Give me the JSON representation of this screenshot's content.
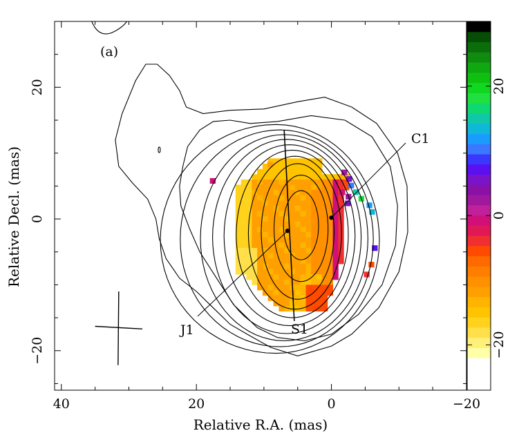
{
  "figure": {
    "panel_label": "(a)",
    "xlabel": "Relative R.A. (mas)",
    "ylabel": "Relative Decl. (mas)"
  },
  "chart_data": {
    "type": "heatmap",
    "xlabel": "Relative R.A. (mas)",
    "ylabel": "Relative Decl. (mas)",
    "xlim": [
      41,
      -20
    ],
    "ylim": [
      -26,
      30
    ],
    "x_ticks": [
      40,
      20,
      0,
      -20
    ],
    "y_ticks": [
      20,
      0,
      -20
    ],
    "x_tick_labels": [
      "40",
      "20",
      "0",
      "−20"
    ],
    "y_tick_labels": [
      "20",
      "0",
      "−20"
    ],
    "grid": false,
    "colorbar": {
      "range": [
        -27,
        30
      ],
      "ticks": [
        20,
        0,
        -20
      ],
      "tick_labels": [
        "20",
        "0",
        "−20"
      ],
      "colors": [
        "#ffffa8",
        "#fff07a",
        "#ffe04a",
        "#ffd21e",
        "#ffc400",
        "#ffb400",
        "#ffa000",
        "#ff9000",
        "#ff7e00",
        "#ff6a00",
        "#ff4a00",
        "#f03030",
        "#e01858",
        "#d01078",
        "#c0209a",
        "#a0189e",
        "#8a10a8",
        "#7a14c8",
        "#5a10f0",
        "#3a38ff",
        "#3a78ff",
        "#1a9cff",
        "#10b8d8",
        "#10c8a8",
        "#10d870",
        "#20e040",
        "#10d820",
        "#10c010",
        "#10a810",
        "#0f8c10",
        "#0a6e0a",
        "#064e06",
        "#000000"
      ]
    },
    "components": [
      {
        "name": "C1",
        "x": 0,
        "y": 0.2
      },
      {
        "name": "J1",
        "x": 6.5,
        "y": -1.8
      },
      {
        "name": "S1",
        "x": 5.5,
        "y": -15.5
      }
    ],
    "lines": [
      {
        "name": "S1",
        "from": [
          7.0,
          13.5
        ],
        "to": [
          5.5,
          -15.5
        ]
      }
    ],
    "beam": {
      "major": [
        [
          31.6,
          -22.2
        ],
        [
          31.5,
          -11
        ]
      ],
      "minor": [
        [
          35,
          -16.3
        ],
        [
          28,
          -16.7
        ]
      ]
    },
    "contours": "Stokes I total intensity contours; polarization angle color map overlaid"
  }
}
